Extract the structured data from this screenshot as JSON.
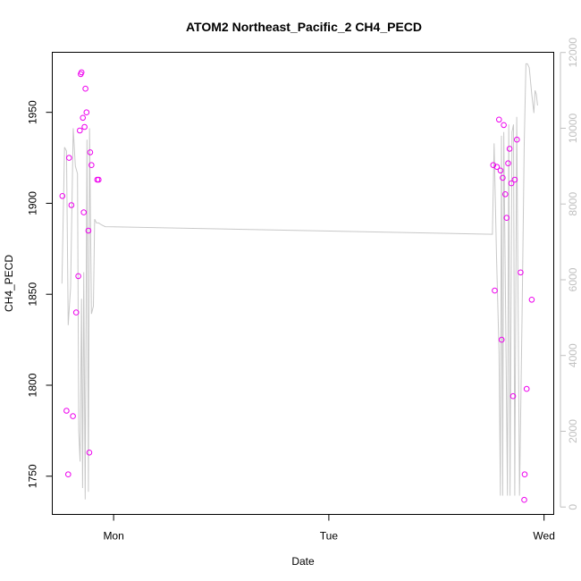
{
  "chart_data": {
    "type": "scatter",
    "title": "ATOM2 Northeast_Pacific_2 CH4_PECD",
    "xlabel": "Date",
    "ylabel": "CH4_PECD",
    "x_ticks": [
      "Mon",
      "Tue",
      "Wed"
    ],
    "x_tick_days": [
      1,
      2,
      3
    ],
    "xlim_days": [
      0.715,
      3.045
    ],
    "ylim": [
      1729,
      1983
    ],
    "yticks": [
      1750,
      1800,
      1850,
      1900,
      1950
    ],
    "y2lim": [
      -195,
      12005
    ],
    "y2ticks": [
      0,
      2000,
      4000,
      6000,
      8000,
      10000,
      12000
    ],
    "grid": false,
    "colors": {
      "points": "#ee00ee",
      "line": "#c8c8c8",
      "axis": "#000000",
      "right_axis": "#c0c0c0"
    },
    "series": [
      {
        "kind": "points",
        "x_days": [
          0.762,
          0.781,
          0.789,
          0.793,
          0.804,
          0.811,
          0.826,
          0.836,
          0.843,
          0.847,
          0.851,
          0.857,
          0.861,
          0.865,
          0.869,
          0.874,
          0.883,
          0.887,
          0.891,
          0.897,
          0.924,
          0.93,
          2.764,
          2.771,
          2.781,
          2.791,
          2.798,
          2.803,
          2.808,
          2.813,
          2.82,
          2.826,
          2.833,
          2.84,
          2.848,
          2.856,
          2.864,
          2.874,
          2.891,
          2.91
        ],
        "values": [
          1904,
          1786,
          1751,
          1925,
          1899,
          1783,
          1840,
          1860,
          1940,
          1971,
          1972,
          1947,
          1895,
          1942,
          1963,
          1950,
          1885,
          1763,
          1928,
          1921,
          1913,
          1913,
          1921,
          1852,
          1920,
          1946,
          1918,
          1825,
          1914,
          1943,
          1905,
          1892,
          1922,
          1930,
          1911,
          1794,
          1913,
          1935,
          1862,
          1751
        ]
      },
      {
        "kind": "points",
        "x_days": [
          2.908,
          2.919,
          2.943
        ],
        "values": [
          1737,
          1798,
          1847
        ]
      },
      {
        "kind": "line",
        "axis": "right",
        "x_days": [
          0.76,
          0.772,
          0.781,
          0.789,
          0.8,
          0.812,
          0.822,
          0.832,
          0.838,
          0.844,
          0.851,
          0.856,
          0.861,
          0.868,
          0.876,
          0.883,
          0.888,
          0.897,
          0.906,
          0.912,
          0.92,
          0.925,
          0.93,
          0.943,
          0.961,
          2.76,
          2.768,
          2.779,
          2.791,
          2.797,
          2.802,
          2.808,
          2.813,
          2.821,
          2.83,
          2.836,
          2.842,
          2.851,
          2.858,
          2.864,
          2.873,
          2.886,
          2.898,
          2.908,
          2.916,
          2.923,
          2.931,
          2.943,
          2.953,
          2.958,
          2.964,
          2.97
        ],
        "values": [
          5900,
          9500,
          9400,
          4800,
          5800,
          10000,
          9000,
          8800,
          2000,
          1200,
          5500,
          500,
          6200,
          200,
          9700,
          400,
          10000,
          5100,
          5300,
          7600,
          7500,
          7500,
          7500,
          7450,
          7400,
          7200,
          9600,
          6600,
          4100,
          300,
          9800,
          300,
          9900,
          5300,
          300,
          10100,
          300,
          9900,
          10100,
          300,
          10300,
          300,
          5100,
          9600,
          11700,
          11700,
          11600,
          10900,
          10400,
          11000,
          10900,
          10600
        ]
      }
    ]
  }
}
